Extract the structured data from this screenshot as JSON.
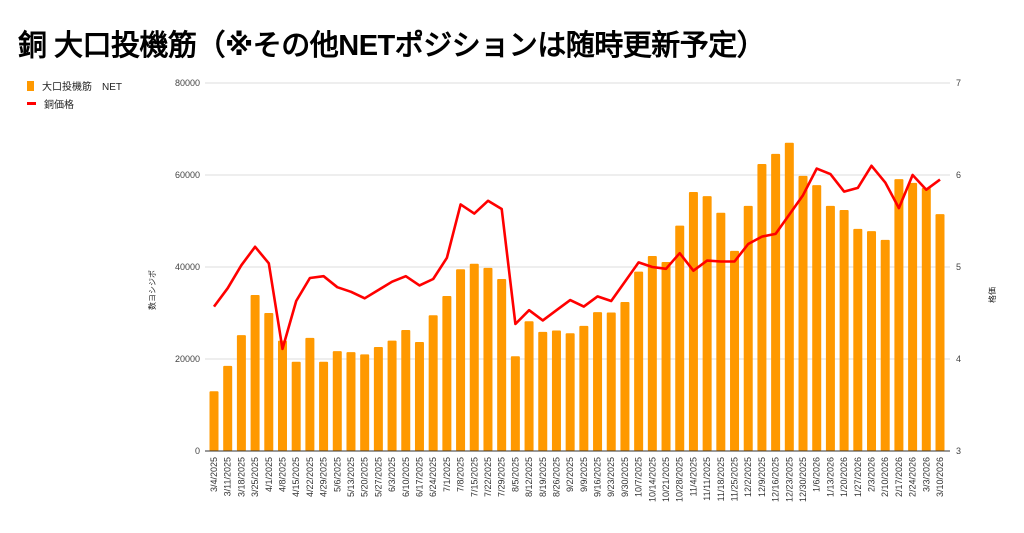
{
  "title": "銅 大口投機筋（※その他NETポジションは随時更新予定）",
  "chart_data": {
    "type": "bar+line",
    "title": "銅 大口投機筋（※その他NETポジションは随時更新予定）",
    "categories": [
      "3/4/2025",
      "3/11/2025",
      "3/18/2025",
      "3/25/2025",
      "4/1/2025",
      "4/8/2025",
      "4/15/2025",
      "4/22/2025",
      "4/29/2025",
      "5/6/2025",
      "5/13/2025",
      "5/20/2025",
      "5/27/2025",
      "6/3/2025",
      "6/10/2025",
      "6/17/2025",
      "6/24/2025",
      "7/1/2025",
      "7/8/2025",
      "7/15/2025",
      "7/22/2025",
      "7/29/2025",
      "8/5/2025",
      "8/12/2025",
      "8/19/2025",
      "8/26/2025",
      "9/2/2025",
      "9/9/2025",
      "9/16/2025",
      "9/23/2025",
      "9/30/2025",
      "10/7/2025",
      "10/14/2025",
      "10/21/2025",
      "10/28/2025",
      "11/4/2025",
      "11/11/2025",
      "11/18/2025",
      "11/25/2025",
      "12/2/2025",
      "12/9/2025",
      "12/16/2025",
      "12/23/2025",
      "12/30/2025",
      "1/6/2026",
      "1/13/2026",
      "1/20/2026",
      "1/27/2026",
      "2/3/2026",
      "2/10/2026",
      "2/17/2026",
      "2/24/2026",
      "3/3/2026",
      "3/10/2026"
    ],
    "series": [
      {
        "name": "大口投機筋　NET",
        "type": "bar",
        "axis": "left",
        "color": "#ff9900",
        "values": [
          13000,
          18500,
          25200,
          33900,
          30000,
          24000,
          19400,
          24600,
          19400,
          21700,
          21500,
          21000,
          22600,
          24000,
          26300,
          23700,
          29500,
          33700,
          39500,
          40700,
          39800,
          37400,
          20600,
          28200,
          25900,
          26200,
          25600,
          27200,
          30200,
          30100,
          32400,
          39000,
          42400,
          41100,
          49000,
          56300,
          55400,
          51800,
          43500,
          53300,
          62400,
          64600,
          67000,
          59800,
          57800,
          53300,
          52400,
          48300,
          47800,
          45900,
          59100,
          58300,
          57200,
          51500
        ]
      },
      {
        "name": "銅価格",
        "type": "line",
        "axis": "right",
        "color": "#ff0000",
        "values": [
          4.57,
          4.77,
          5.02,
          5.22,
          5.04,
          4.11,
          4.63,
          4.88,
          4.9,
          4.78,
          4.73,
          4.66,
          4.75,
          4.84,
          4.9,
          4.8,
          4.87,
          5.1,
          5.68,
          5.58,
          5.72,
          5.63,
          4.38,
          4.53,
          4.42,
          4.53,
          4.64,
          4.57,
          4.68,
          4.63,
          4.84,
          5.05,
          5.0,
          4.98,
          5.15,
          4.96,
          5.07,
          5.06,
          5.06,
          5.25,
          5.33,
          5.36,
          5.57,
          5.78,
          6.07,
          6.01,
          5.82,
          5.86,
          6.1,
          5.92,
          5.64,
          6.0,
          5.84,
          5.95
        ]
      }
    ],
    "ylabel": "数ヨシジポ",
    "y2label": "格価",
    "ylim": [
      0,
      80000
    ],
    "yticks": [
      "0",
      "20000",
      "40000",
      "60000",
      "80000"
    ],
    "y2lim": [
      3,
      7
    ],
    "y2ticks": [
      "3",
      "4",
      "5",
      "6",
      "7"
    ],
    "grid": true,
    "legend_position": "left"
  }
}
